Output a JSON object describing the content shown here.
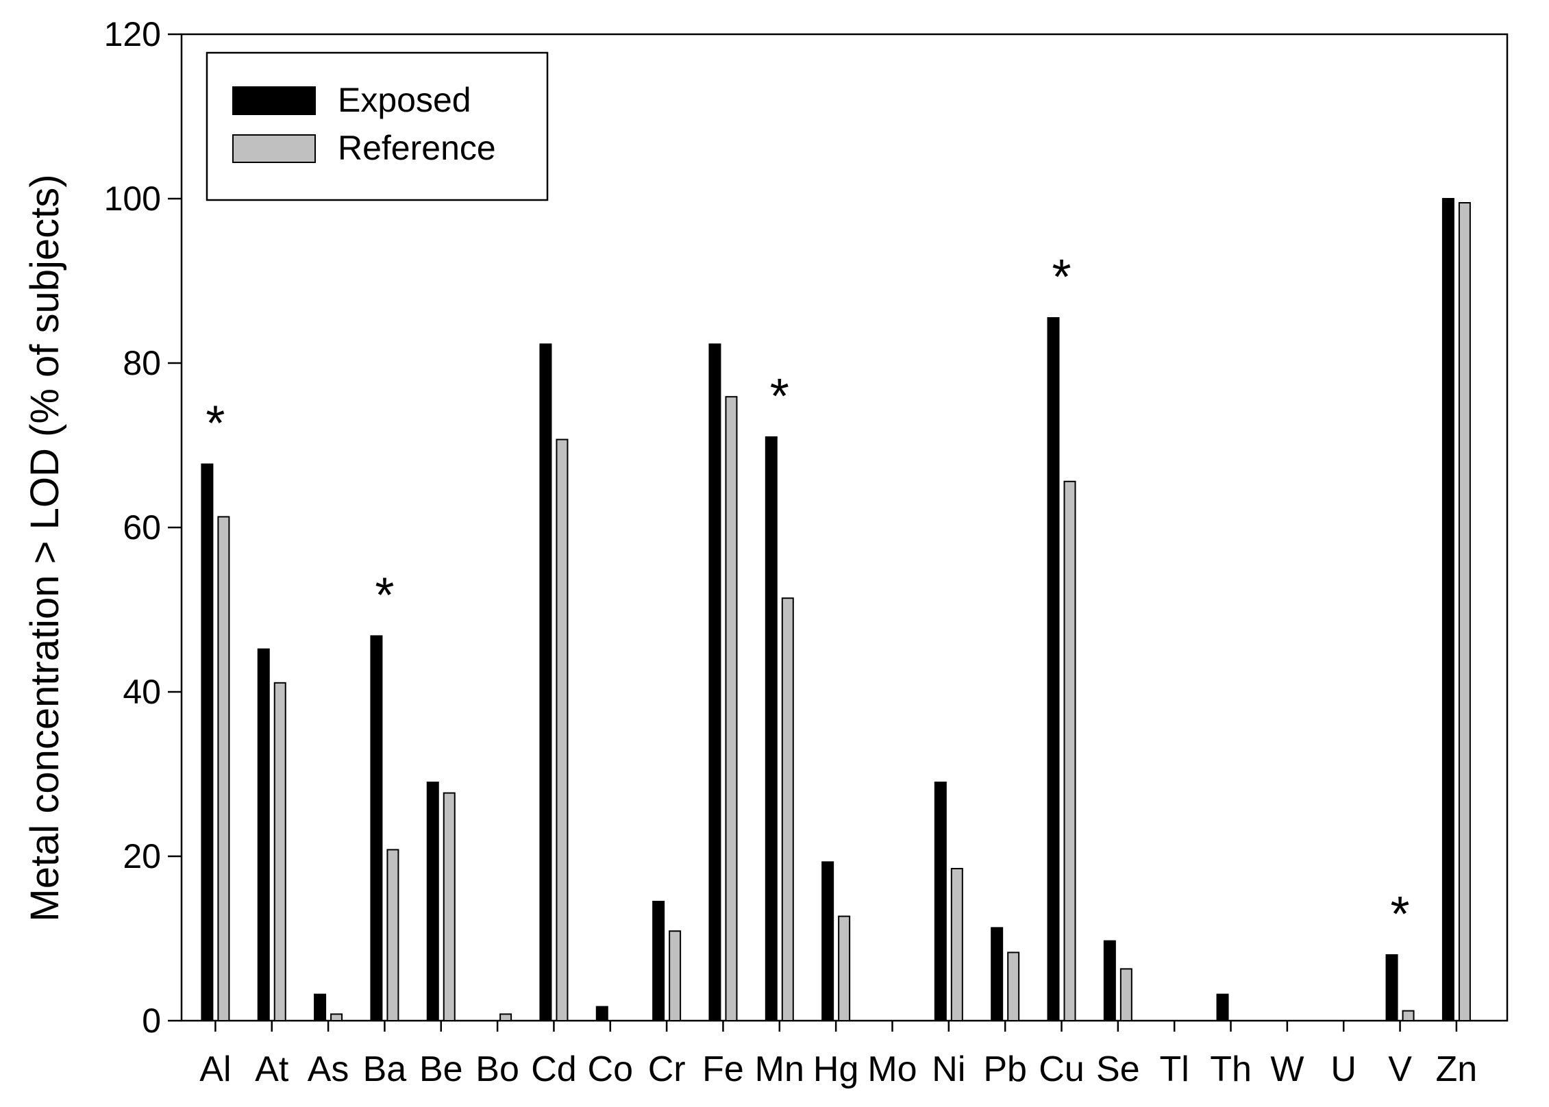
{
  "chart_data": {
    "type": "bar",
    "title": "",
    "xlabel": "",
    "ylabel": "Metal concentration > LOD (% of subjects)",
    "ylim": [
      0,
      120
    ],
    "yticks": [
      0,
      20,
      40,
      60,
      80,
      100,
      120
    ],
    "grid": false,
    "legend_position": "top-left",
    "categories": [
      "Al",
      "At",
      "As",
      "Ba",
      "Be",
      "Bo",
      "Cd",
      "Co",
      "Cr",
      "Fe",
      "Mn",
      "Hg",
      "Mo",
      "Ni",
      "Pb",
      "Cu",
      "Se",
      "Tl",
      "Th",
      "W",
      "U",
      "V",
      "Zn"
    ],
    "series": [
      {
        "name": "Exposed",
        "color": "#000000",
        "values": [
          67.7,
          45.2,
          3.2,
          46.8,
          29.0,
          0,
          82.3,
          1.7,
          14.5,
          82.3,
          71.0,
          19.3,
          0,
          29.0,
          11.3,
          85.5,
          9.7,
          0,
          3.2,
          0,
          0,
          8.0,
          100
        ]
      },
      {
        "name": "Reference",
        "color": "#c0c0c0",
        "values": [
          61.3,
          41.1,
          0.8,
          20.8,
          27.7,
          0.8,
          70.7,
          0,
          10.9,
          75.9,
          51.4,
          12.7,
          0,
          18.5,
          8.3,
          65.6,
          6.3,
          0,
          0,
          0,
          0,
          1.2,
          99.5
        ]
      }
    ],
    "significance_marks": [
      {
        "category": "Al",
        "label": "*"
      },
      {
        "category": "Ba",
        "label": "*"
      },
      {
        "category": "Mn",
        "label": "*"
      },
      {
        "category": "Cu",
        "label": "*"
      },
      {
        "category": "V",
        "label": "*"
      }
    ]
  }
}
